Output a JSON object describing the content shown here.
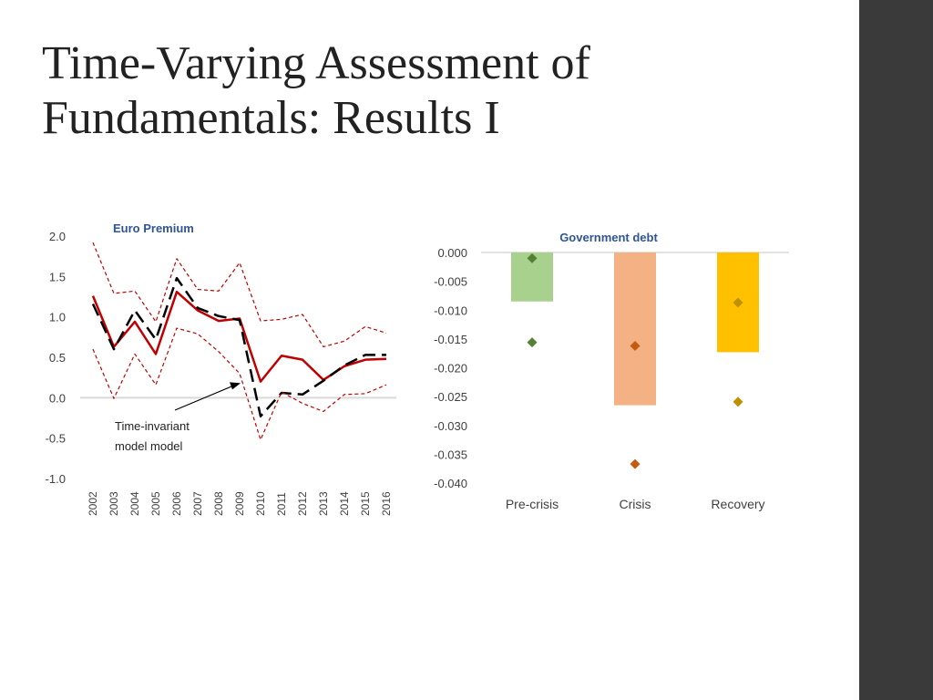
{
  "slide": {
    "title_line1": "Time-Varying Assessment of",
    "title_line2": "Fundamentals: Results I"
  },
  "chart_data": [
    {
      "type": "line",
      "title": "Euro Premium",
      "x": [
        "2002",
        "2003",
        "2004",
        "2005",
        "2006",
        "2007",
        "2008",
        "2009",
        "2010",
        "2011",
        "2012",
        "2013",
        "2014",
        "2015",
        "2016"
      ],
      "yticks": [
        "2.0",
        "1.5",
        "1.0",
        "0.5",
        "0.0",
        "-0.5",
        "-1.0"
      ],
      "ylim": [
        -1.0,
        2.0
      ],
      "series": [
        {
          "style": "solid",
          "color": "#c00000",
          "values": [
            1.26,
            0.63,
            0.94,
            0.54,
            1.31,
            1.08,
            0.95,
            0.98,
            0.2,
            0.52,
            0.47,
            0.22,
            0.39,
            0.47,
            0.48
          ]
        },
        {
          "style": "dashed",
          "color": "#000000",
          "values": [
            1.16,
            0.6,
            1.08,
            0.72,
            1.48,
            1.11,
            1.01,
            0.96,
            -0.23,
            0.06,
            0.04,
            0.21,
            0.4,
            0.53,
            0.53
          ]
        },
        {
          "style": "dotted",
          "color": "#c00000",
          "values": [
            1.92,
            1.29,
            1.32,
            0.94,
            1.72,
            1.34,
            1.32,
            1.67,
            0.95,
            0.97,
            1.03,
            0.63,
            0.7,
            0.88,
            0.8
          ]
        },
        {
          "style": "dotted",
          "color": "#c00000",
          "values": [
            0.6,
            -0.01,
            0.54,
            0.16,
            0.86,
            0.79,
            0.57,
            0.3,
            -0.52,
            0.07,
            -0.07,
            -0.17,
            0.04,
            0.05,
            0.16
          ]
        }
      ],
      "annotations": [
        {
          "text_line1": "Time-invariant",
          "text_line2": "model model",
          "x": "2009",
          "y": 0.18
        }
      ],
      "grid": false,
      "legend": "none"
    },
    {
      "type": "bar",
      "title": "Government debt",
      "categories": [
        "Pre-crisis",
        "Crisis",
        "Recovery"
      ],
      "yticks": [
        "0.000",
        "-0.005",
        "-0.010",
        "-0.015",
        "-0.020",
        "-0.025",
        "-0.030",
        "-0.035",
        "-0.040"
      ],
      "ylim": [
        -0.04,
        0.0
      ],
      "values": [
        -0.0085,
        -0.0265,
        -0.0173
      ],
      "bar_colors": [
        "#a9d18e",
        "#f4b183",
        "#ffc000"
      ],
      "upper_markers": [
        -0.001,
        -0.0162,
        -0.0087
      ],
      "lower_markers": [
        -0.0156,
        -0.0367,
        -0.0259
      ],
      "marker_colors": [
        "#548235",
        "#c55a11",
        "#bf9000"
      ],
      "grid": false,
      "legend": "none"
    }
  ]
}
